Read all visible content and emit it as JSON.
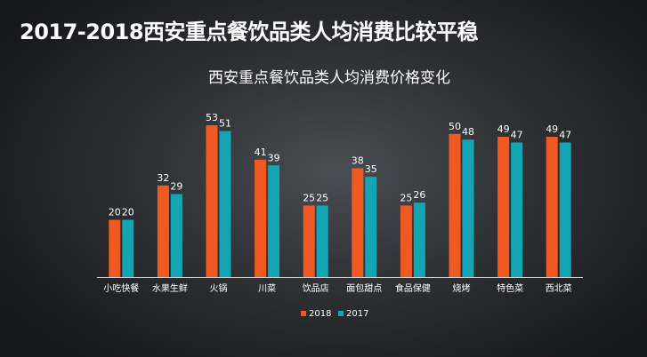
{
  "slide": {
    "headline": "2017-2018西安重点餐饮品类人均消费比较平稳"
  },
  "chart_data": {
    "type": "bar",
    "title": "西安重点餐饮品类人均消费价格变化",
    "categories": [
      "小吃快餐",
      "水果生鲜",
      "火锅",
      "川菜",
      "饮品店",
      "面包甜点",
      "食品保健",
      "烧烤",
      "特色菜",
      "西北菜"
    ],
    "series": [
      {
        "name": "2018",
        "color": "#f05a22",
        "values": [
          20,
          32,
          53,
          41,
          25,
          38,
          25,
          50,
          49,
          49
        ]
      },
      {
        "name": "2017",
        "color": "#13a5b3",
        "values": [
          20,
          29,
          51,
          39,
          25,
          35,
          26,
          48,
          47,
          47
        ]
      }
    ],
    "ylim": [
      0,
      58
    ],
    "grid": false,
    "legend_position": "bottom-center",
    "axis_color": "#cfcfcf"
  }
}
